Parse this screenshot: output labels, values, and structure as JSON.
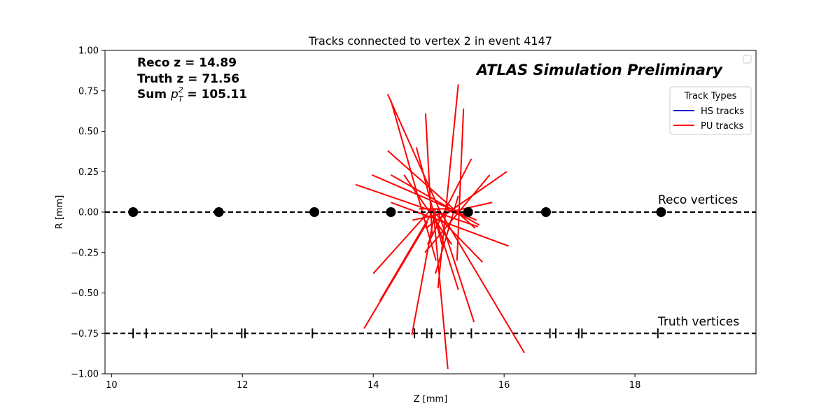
{
  "chart_data": {
    "type": "line",
    "title": "Tracks connected to vertex 2 in event 4147",
    "xlabel": "Z [mm]",
    "ylabel": "R [mm]",
    "xlim": [
      9.9,
      19.85
    ],
    "ylim": [
      -1.0,
      1.0
    ],
    "x_ticks": [
      {
        "value": 10,
        "label": "10"
      },
      {
        "value": 12,
        "label": "12"
      },
      {
        "value": 14,
        "label": "14"
      },
      {
        "value": 16,
        "label": "16"
      },
      {
        "value": 18,
        "label": "18"
      }
    ],
    "y_ticks": [
      {
        "value": 1.0,
        "label": "1.00"
      },
      {
        "value": 0.75,
        "label": "0.75"
      },
      {
        "value": 0.5,
        "label": "0.50"
      },
      {
        "value": 0.25,
        "label": "0.25"
      },
      {
        "value": 0.0,
        "label": "0.00"
      },
      {
        "value": -0.25,
        "label": "−0.25"
      },
      {
        "value": -0.5,
        "label": "−0.50"
      },
      {
        "value": -0.75,
        "label": "−0.75"
      },
      {
        "value": -1.0,
        "label": "−1.00"
      }
    ],
    "grid": false,
    "info_lines": {
      "reco_z": "Reco z = 14.89",
      "truth_z": "Truth z = 71.56",
      "sum_pt_prefix": "Sum ",
      "sum_pt_p": "p",
      "sum_pt_sub": "T",
      "sum_pt_sup": "2",
      "sum_pt_value": " = 105.11"
    },
    "atlas_label": "ATLAS Simulation Preliminary",
    "reco_vertices_label": "Reco vertices",
    "truth_vertices_label": "Truth vertices",
    "reco_line_r": 0.0,
    "truth_line_r": -0.75,
    "reco_vertices_z": [
      10.33,
      11.64,
      13.1,
      14.27,
      15.45,
      16.64,
      18.4
    ],
    "truth_vertices_z": [
      10.33,
      10.53,
      11.53,
      11.99,
      12.04,
      13.07,
      14.25,
      14.63,
      14.82,
      14.89,
      15.19,
      15.5,
      16.7,
      16.79,
      17.14,
      17.19,
      18.35
    ],
    "legend": {
      "title": "Track Types",
      "position": "upper-right",
      "items": [
        {
          "label": "HS tracks",
          "color": "#0000cc"
        },
        {
          "label": "PU tracks",
          "color": "#ff0000"
        }
      ]
    },
    "colors": {
      "hs": "#0000cc",
      "pu": "#ff0000",
      "vertex": "#000000"
    },
    "pu_tracks": [
      [
        [
          14.22,
          0.73
        ],
        [
          15.05,
          -0.02
        ]
      ],
      [
        [
          14.27,
          0.69
        ],
        [
          14.96,
          -0.3
        ]
      ],
      [
        [
          14.8,
          0.61
        ],
        [
          14.9,
          -0.15
        ]
      ],
      [
        [
          15.3,
          0.79
        ],
        [
          14.99,
          -0.47
        ]
      ],
      [
        [
          15.38,
          0.64
        ],
        [
          15.28,
          -0.3
        ]
      ],
      [
        [
          14.66,
          0.4
        ],
        [
          15.05,
          -0.2
        ]
      ],
      [
        [
          14.22,
          0.38
        ],
        [
          15.56,
          -0.1
        ]
      ],
      [
        [
          13.73,
          0.17
        ],
        [
          15.6,
          -0.09
        ]
      ],
      [
        [
          13.98,
          0.23
        ],
        [
          15.58,
          -0.05
        ]
      ],
      [
        [
          14.27,
          0.23
        ],
        [
          15.62,
          -0.08
        ]
      ],
      [
        [
          14.47,
          0.23
        ],
        [
          15.2,
          -0.2
        ]
      ],
      [
        [
          14.27,
          0.06
        ],
        [
          16.07,
          -0.21
        ]
      ],
      [
        [
          15.5,
          0.33
        ],
        [
          14.83,
          -0.2
        ]
      ],
      [
        [
          15.78,
          0.23
        ],
        [
          14.79,
          -0.25
        ]
      ],
      [
        [
          16.04,
          0.25
        ],
        [
          14.8,
          -0.1
        ]
      ],
      [
        [
          15.82,
          0.06
        ],
        [
          14.6,
          -0.05
        ]
      ],
      [
        [
          14.1,
          -0.55
        ],
        [
          14.93,
          0.02
        ]
      ],
      [
        [
          13.86,
          -0.72
        ],
        [
          14.83,
          -0.06
        ]
      ],
      [
        [
          14.0,
          -0.38
        ],
        [
          14.89,
          0.02
        ]
      ],
      [
        [
          14.59,
          -0.76
        ],
        [
          14.95,
          0.02
        ]
      ],
      [
        [
          15.14,
          -0.97
        ],
        [
          14.92,
          0.0
        ]
      ],
      [
        [
          15.54,
          -0.68
        ],
        [
          14.98,
          0.02
        ]
      ],
      [
        [
          16.31,
          -0.87
        ],
        [
          15.0,
          0.02
        ]
      ],
      [
        [
          15.67,
          -0.31
        ],
        [
          14.9,
          0.01
        ]
      ],
      [
        [
          14.95,
          -0.38
        ],
        [
          15.3,
          0.1
        ]
      ],
      [
        [
          15.3,
          -0.48
        ],
        [
          14.9,
          0.03
        ]
      ],
      [
        [
          15.1,
          0.02
        ],
        [
          15.45,
          -0.04
        ]
      ],
      [
        [
          14.7,
          0.02
        ],
        [
          15.2,
          0.02
        ]
      ]
    ],
    "hs_tracks": []
  }
}
